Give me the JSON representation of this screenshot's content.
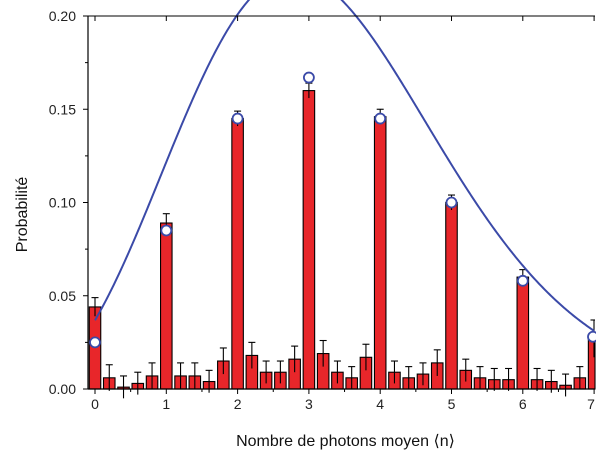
{
  "chart_data": {
    "type": "bar",
    "xlabel": "Nombre de photons moyen ⟨n⟩",
    "ylabel": "Probabilité",
    "xlim": [
      -0.1,
      7.0
    ],
    "ylim": [
      0.0,
      0.2
    ],
    "x_ticks": [
      "0",
      "1",
      "2",
      "3",
      "4",
      "5",
      "6",
      "7"
    ],
    "y_ticks": [
      "0.00",
      "0.05",
      "0.10",
      "0.15",
      "0.20"
    ],
    "grid": false,
    "colors": {
      "bar": "#e8262a",
      "curve": "#3b4aa8",
      "marker_fill": "#ffffff",
      "axis": "#000000"
    },
    "bars": {
      "x": [
        0,
        0.2,
        0.4,
        0.6,
        0.8,
        1.0,
        1.2,
        1.4,
        1.6,
        1.8,
        2.0,
        2.2,
        2.4,
        2.6,
        2.8,
        3.0,
        3.2,
        3.4,
        3.6,
        3.8,
        4.0,
        4.2,
        4.4,
        4.6,
        4.8,
        5.0,
        5.2,
        5.4,
        5.6,
        5.8,
        6.0,
        6.2,
        6.4,
        6.6,
        6.8,
        7.0
      ],
      "values": [
        0.044,
        0.006,
        0.001,
        0.003,
        0.007,
        0.089,
        0.007,
        0.007,
        0.004,
        0.015,
        0.145,
        0.018,
        0.009,
        0.009,
        0.016,
        0.16,
        0.019,
        0.009,
        0.006,
        0.017,
        0.146,
        0.009,
        0.006,
        0.008,
        0.014,
        0.1,
        0.01,
        0.006,
        0.005,
        0.005,
        0.06,
        0.005,
        0.004,
        0.002,
        0.006,
        0.027
      ],
      "errors": [
        0.005,
        0.007,
        0.006,
        0.006,
        0.007,
        0.005,
        0.007,
        0.007,
        0.006,
        0.007,
        0.004,
        0.007,
        0.006,
        0.006,
        0.007,
        0.004,
        0.007,
        0.006,
        0.006,
        0.007,
        0.004,
        0.006,
        0.006,
        0.006,
        0.007,
        0.004,
        0.006,
        0.006,
        0.006,
        0.006,
        0.004,
        0.006,
        0.006,
        0.006,
        0.006,
        0.01
      ]
    },
    "markers": {
      "x": [
        0,
        1,
        2,
        3,
        4,
        5,
        6,
        7
      ],
      "y": [
        0.025,
        0.085,
        0.145,
        0.167,
        0.145,
        0.1,
        0.058,
        0.028
      ]
    },
    "curve_mean": 3.3
  }
}
